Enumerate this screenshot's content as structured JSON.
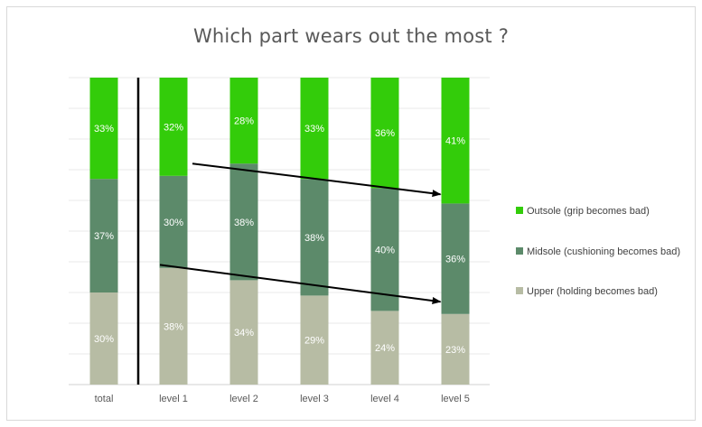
{
  "chart_data": {
    "type": "bar",
    "stacked": true,
    "title": "Which part wears out the most ?",
    "categories": [
      "total",
      "level 1",
      "level 2",
      "level 3",
      "level 4",
      "level 5"
    ],
    "series": [
      {
        "name": "Upper (holding becomes bad)",
        "values": [
          30,
          38,
          34,
          29,
          24,
          23
        ],
        "labels": [
          "30%",
          "38%",
          "34%",
          "29%",
          "24%",
          "23%"
        ],
        "color": "#b7bca4"
      },
      {
        "name": "Midsole (cushioning becomes bad)",
        "values": [
          37,
          30,
          38,
          38,
          40,
          36
        ],
        "labels": [
          "37%",
          "30%",
          "38%",
          "38%",
          "40%",
          "36%"
        ],
        "color": "#5c8a6a"
      },
      {
        "name": "Outsole (grip becomes bad)",
        "values": [
          33,
          32,
          28,
          33,
          36,
          41
        ],
        "labels": [
          "33%",
          "32%",
          "28%",
          "33%",
          "36%",
          "41%"
        ],
        "color": "#33cc0a"
      }
    ],
    "legend_order": [
      2,
      1,
      0
    ],
    "ylim": [
      0,
      100
    ],
    "grid": true,
    "legend_position": "right",
    "annotations": {
      "separator_after_category": "total",
      "trend_arrows": [
        {
          "from_category": "level 2",
          "from_value": 72,
          "to_category": "level 5",
          "to_value": 62
        },
        {
          "from_category": "level 1",
          "from_value": 39,
          "to_category": "level 5",
          "to_value": 27
        }
      ]
    }
  }
}
